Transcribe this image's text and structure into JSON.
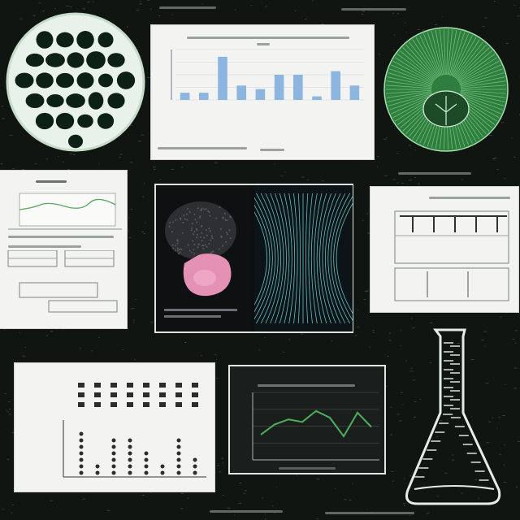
{
  "colors": {
    "background": "#101512",
    "accent_green": "#4fae5a",
    "bar_blue": "#8cb6e0",
    "pink": "#e591b5",
    "cyan": "#6fd0d4"
  },
  "top_chart": {
    "title": "",
    "subtitle": "",
    "footer": ""
  },
  "bottom_line_chart": {
    "title": "",
    "footer": ""
  },
  "chart_data": [
    {
      "type": "bar",
      "categories": [
        "",
        "",
        "",
        "",
        "",
        "",
        "",
        "",
        "",
        ""
      ],
      "values": [
        2,
        2,
        12,
        4,
        3,
        7,
        7,
        1,
        8,
        4
      ],
      "ylim": [
        0,
        14
      ],
      "grid": true
    },
    {
      "type": "line",
      "x": [
        1,
        2,
        3,
        4,
        5,
        6,
        7,
        8,
        9
      ],
      "values": [
        3,
        4.2,
        4.8,
        4.5,
        5.8,
        5.0,
        2.8,
        5.6,
        3.9
      ],
      "ylim": [
        0,
        8
      ],
      "grid": true
    }
  ]
}
